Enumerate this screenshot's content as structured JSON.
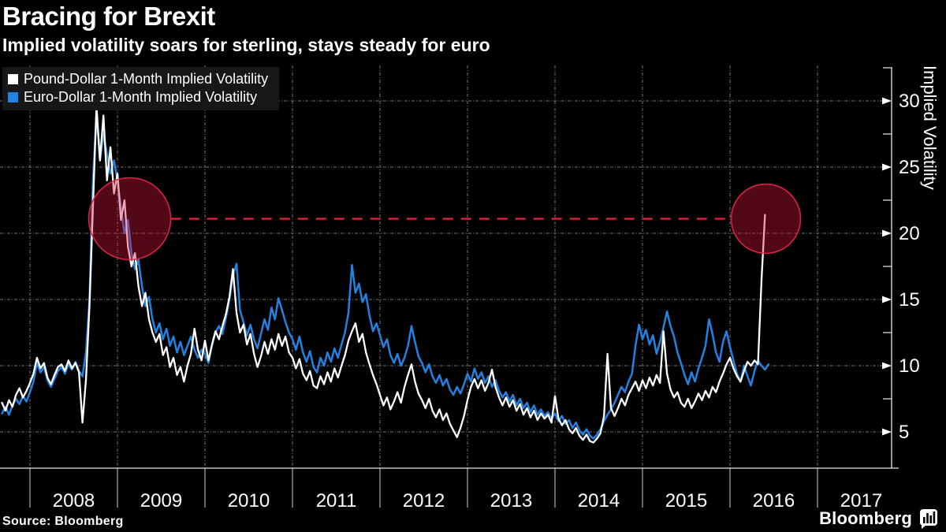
{
  "header": {
    "title": "Bracing for Brexit",
    "subtitle": "Implied volatility soars for sterling, stays steady for euro"
  },
  "source_text": "Source: Bloomberg",
  "branding": {
    "logo_text": "Bloomberg",
    "logo_icon": "bar-chart-bubble-icon"
  },
  "chart_data": {
    "type": "line",
    "title": "Bracing for Brexit",
    "xlabel": "",
    "ylabel": "Implied Volatility",
    "x_axis": {
      "boundary_years": [
        2008,
        2009,
        2010,
        2011,
        2012,
        2013,
        2014,
        2015,
        2016,
        2017
      ],
      "year_labels": [
        "2008",
        "2009",
        "2010",
        "2011",
        "2012",
        "2013",
        "2014",
        "2015",
        "2016",
        "2017"
      ],
      "range_years": [
        2007.66,
        2017.85
      ]
    },
    "y_axis": {
      "label": "Implied Volatility",
      "side": "right",
      "major_ticks": [
        5,
        10,
        15,
        20,
        25,
        30
      ],
      "minor_ticks": [
        7.5,
        12.5,
        17.5,
        22.5,
        27.5,
        32.5
      ],
      "range": [
        2.3,
        32.6
      ]
    },
    "grid": {
      "dotted": true,
      "color": "#8a8a8a"
    },
    "annotations": {
      "dashed_line": {
        "value": 21.1,
        "from_year": 2009.61,
        "to_year": 2016.02,
        "color": "#d9233b"
      },
      "circles": [
        {
          "label": "2008-crisis-highlight",
          "center_year": 2009.14,
          "center_value": 21.1,
          "radius_px": 52
        },
        {
          "label": "2016-brexit-highlight",
          "center_year": 2016.41,
          "center_value": 21.1,
          "radius_px": 44
        }
      ],
      "circle_fill": "rgba(215,20,60,0.38)",
      "circle_stroke": "rgba(222,38,70,0.95)"
    },
    "series": [
      {
        "name": "Pound-Dollar 1-Month Implied Volatility",
        "color": "#ffffff",
        "x_start": 2007.68,
        "x_step": 0.04,
        "values": [
          7.2,
          6.6,
          7.4,
          6.9,
          7.8,
          8.3,
          7.6,
          8.1,
          8.7,
          9.4,
          10.6,
          9.8,
          10.2,
          9.1,
          8.6,
          9.3,
          9.9,
          10.1,
          9.6,
          10.4,
          9.8,
          10.2,
          9.5,
          5.7,
          8.9,
          14.5,
          22.0,
          29.6,
          25.5,
          28.9,
          24.0,
          26.5,
          23.0,
          24.5,
          21.0,
          22.5,
          19.0,
          17.5,
          18.5,
          16.0,
          14.5,
          15.5,
          13.5,
          12.5,
          11.8,
          12.4,
          10.8,
          11.4,
          9.9,
          10.6,
          9.3,
          9.9,
          8.8,
          10.0,
          10.9,
          12.8,
          11.2,
          10.4,
          11.9,
          10.4,
          11.6,
          12.6,
          12.0,
          13.0,
          13.9,
          15.2,
          17.3,
          14.0,
          12.5,
          13.1,
          11.6,
          12.4,
          10.9,
          9.9,
          10.7,
          11.8,
          10.9,
          12.0,
          11.2,
          12.4,
          11.5,
          12.2,
          11.0,
          10.6,
          9.8,
          10.5,
          9.4,
          8.9,
          9.6,
          8.5,
          8.3,
          9.2,
          8.6,
          9.5,
          8.8,
          9.8,
          9.1,
          10.0,
          10.8,
          11.9,
          12.6,
          13.2,
          11.8,
          12.4,
          11.0,
          10.1,
          9.3,
          8.6,
          7.8,
          7.0,
          7.6,
          6.7,
          7.3,
          8.0,
          7.2,
          8.4,
          9.3,
          10.1,
          8.8,
          7.9,
          7.4,
          6.8,
          7.5,
          6.6,
          6.1,
          6.7,
          5.9,
          6.4,
          5.6,
          5.1,
          4.6,
          5.3,
          6.2,
          7.4,
          8.4,
          9.0,
          8.3,
          8.9,
          8.1,
          8.7,
          9.7,
          8.4,
          7.6,
          7.0,
          7.6,
          6.9,
          7.4,
          6.6,
          7.1,
          6.3,
          6.8,
          6.1,
          6.6,
          5.9,
          6.4,
          6.0,
          6.3,
          5.7,
          7.7,
          6.0,
          5.5,
          5.9,
          5.2,
          4.9,
          5.3,
          4.7,
          4.4,
          4.8,
          4.3,
          4.2,
          4.5,
          4.9,
          6.2,
          10.9,
          6.8,
          6.2,
          6.8,
          7.5,
          7.0,
          7.8,
          8.3,
          8.8,
          8.1,
          8.9,
          8.3,
          9.1,
          8.5,
          9.3,
          8.7,
          12.6,
          9.4,
          8.2,
          7.6,
          8.0,
          7.2,
          6.9,
          7.5,
          6.8,
          7.3,
          7.9,
          7.4,
          8.1,
          7.6,
          8.4,
          8.0,
          8.8,
          9.4,
          10.1,
          10.6,
          9.8,
          9.2,
          8.8,
          9.6,
          10.3,
          10.0,
          10.4,
          10.1,
          16.5,
          21.4
        ]
      },
      {
        "name": "Euro-Dollar 1-Month Implied Volatility",
        "color": "#2381e2",
        "x_start": 2007.68,
        "x_step": 0.04,
        "values": [
          6.4,
          6.9,
          6.3,
          7.0,
          7.5,
          7.1,
          7.7,
          7.3,
          8.0,
          8.8,
          10.2,
          9.5,
          9.9,
          8.9,
          8.4,
          9.0,
          9.6,
          9.9,
          9.4,
          10.1,
          9.7,
          10.3,
          9.6,
          9.2,
          11.0,
          15.0,
          24.0,
          29.0,
          25.5,
          27.5,
          26.0,
          24.5,
          25.5,
          24.0,
          22.0,
          20.0,
          21.0,
          18.5,
          17.3,
          18.0,
          16.0,
          14.5,
          15.2,
          13.5,
          12.5,
          13.2,
          12.0,
          12.8,
          11.5,
          12.2,
          11.0,
          11.8,
          10.8,
          11.5,
          12.2,
          11.2,
          10.6,
          11.2,
          10.9,
          10.2,
          11.5,
          12.5,
          13.0,
          12.4,
          13.6,
          15.0,
          16.8,
          17.7,
          14.2,
          13.3,
          12.3,
          13.1,
          12.0,
          11.3,
          12.4,
          13.5,
          12.7,
          14.4,
          13.5,
          15.1,
          14.2,
          13.3,
          12.5,
          12.0,
          11.2,
          12.2,
          11.0,
          10.3,
          11.1,
          9.9,
          9.5,
          10.6,
          10.0,
          11.0,
          10.3,
          11.3,
          10.6,
          11.6,
          12.5,
          14.0,
          17.6,
          15.5,
          16.2,
          14.8,
          15.4,
          13.8,
          12.6,
          13.2,
          12.3,
          11.4,
          12.0,
          10.8,
          10.2,
          10.9,
          10.0,
          10.6,
          11.5,
          13.0,
          11.8,
          10.7,
          10.2,
          9.5,
          10.1,
          9.2,
          8.7,
          9.3,
          8.5,
          9.0,
          8.2,
          7.8,
          8.4,
          7.9,
          8.6,
          9.4,
          8.8,
          9.8,
          9.0,
          9.5,
          8.7,
          9.2,
          8.4,
          8.9,
          8.1,
          7.6,
          8.0,
          7.3,
          7.8,
          7.0,
          7.5,
          6.8,
          7.2,
          6.5,
          7.0,
          6.3,
          6.7,
          6.2,
          6.5,
          6.0,
          6.4,
          5.8,
          6.2,
          5.6,
          5.9,
          5.3,
          5.7,
          5.1,
          4.8,
          5.2,
          4.7,
          4.5,
          4.8,
          5.2,
          5.8,
          6.3,
          6.7,
          7.2,
          7.8,
          8.4,
          8.0,
          8.8,
          9.4,
          11.5,
          13.1,
          12.0,
          12.7,
          11.6,
          12.3,
          10.9,
          11.8,
          12.9,
          14.1,
          13.0,
          12.2,
          11.0,
          10.2,
          9.3,
          8.6,
          9.5,
          8.8,
          9.8,
          10.6,
          11.5,
          13.5,
          12.4,
          11.0,
          10.3,
          11.8,
          12.6,
          11.4,
          10.4,
          9.4,
          8.8,
          10.0,
          9.2,
          8.5,
          9.6,
          10.4,
          10.0,
          9.7,
          10.1
        ]
      }
    ]
  }
}
